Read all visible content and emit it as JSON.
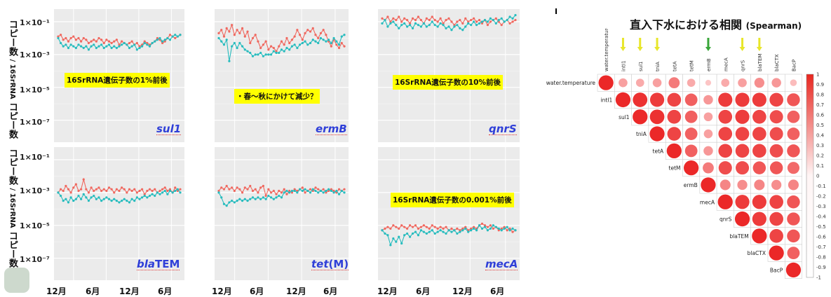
{
  "panels": {
    "y_ticks": [
      "1×10⁻¹",
      "1×10⁻³",
      "1×10⁻⁵",
      "1×10⁻⁷"
    ],
    "x_ticks": [
      "12月",
      "6月",
      "12月",
      "6月"
    ],
    "ylabel": "コピー数 / 16SrRNA コピー数",
    "ylabel_main": "コピー数",
    "ylabel_sub": "/ 16SrRNA",
    "ylabel_tail": "コピー数",
    "colors": {
      "red": "#f0685f",
      "teal": "#27bcbe",
      "grid": "#ffffff",
      "bg": "#ebebeb"
    },
    "annotations": {
      "sul1": "16SrRNA遺伝子数の1%前後",
      "ermB": "・春～秋にかけて減少？",
      "qnrS": "16SrRNA遺伝子数の10%前後",
      "mecA": "16SrRNA遺伝子数の0.001%前後"
    },
    "names": {
      "sul1": "sul1",
      "ermB": "ermB",
      "qnrS": "qnrS",
      "blaTEM_a": "bla",
      "blaTEM_b": "TEM",
      "tetM_a": "tet",
      "tetM_b": "(M)",
      "mecA": "mecA"
    }
  },
  "chart_data": [
    {
      "type": "line",
      "gene": "sul1",
      "ylog": true,
      "ylim": [
        "1e-8",
        "1e-1"
      ],
      "series": [
        {
          "color": "#f0685f",
          "values": [
            -1.9,
            -1.8,
            -2.1,
            -2.0,
            -2.2,
            -2.0,
            -1.9,
            -2.1,
            -2.0,
            -2.2,
            -2.0,
            -2.1,
            -2.3,
            -2.2,
            -2.1,
            -2.2,
            -2.0,
            -2.1,
            -2.3,
            -2.1,
            -2.2,
            -2.3,
            -2.2,
            -2.1,
            -2.4,
            -2.2,
            -2.3,
            -2.4,
            -2.3,
            -2.2,
            -2.4,
            -2.3,
            -2.5,
            -2.4,
            -2.2,
            -2.3,
            -2.4,
            -2.3,
            -2.2,
            -2.0,
            -2.1,
            -2.3,
            -2.2,
            -2.0,
            -1.8,
            -1.9,
            -2.0,
            -1.9,
            -1.8
          ]
        },
        {
          "color": "#27bcbe",
          "values": [
            -2.0,
            -2.3,
            -2.5,
            -2.4,
            -2.6,
            -2.4,
            -2.5,
            -2.6,
            -2.4,
            -2.5,
            -2.6,
            -2.5,
            -2.7,
            -2.5,
            -2.4,
            -2.6,
            -2.5,
            -2.4,
            -2.6,
            -2.5,
            -2.4,
            -2.6,
            -2.5,
            -2.6,
            -2.5,
            -2.4,
            -2.3,
            -2.4,
            -2.6,
            -2.5,
            -2.4,
            -2.7,
            -2.6,
            -2.5,
            -2.3,
            -2.4,
            -2.5,
            -2.3,
            -2.2,
            -2.1,
            -2.0,
            -2.2,
            -2.1,
            -2.0,
            -2.1,
            -1.9,
            -1.8,
            -1.9,
            -1.8
          ]
        }
      ]
    },
    {
      "type": "line",
      "gene": "ermB",
      "ylog": true,
      "ylim": [
        "1e-8",
        "1e-1"
      ],
      "series": [
        {
          "color": "#f0685f",
          "values": [
            -1.7,
            -1.5,
            -1.9,
            -1.4,
            -1.6,
            -1.2,
            -1.8,
            -1.5,
            -1.7,
            -1.4,
            -1.9,
            -1.6,
            -2.3,
            -2.0,
            -1.8,
            -2.2,
            -2.6,
            -2.4,
            -2.2,
            -2.7,
            -2.5,
            -2.6,
            -2.8,
            -2.5,
            -2.2,
            -2.4,
            -2.0,
            -2.3,
            -2.1,
            -1.9,
            -1.5,
            -1.8,
            -2.1,
            -1.7,
            -1.5,
            -1.6,
            -1.4,
            -1.8,
            -2.0,
            -1.7,
            -1.5,
            -1.8,
            -2.2,
            -2.5,
            -2.1,
            -2.4,
            -2.6,
            -2.3,
            -2.5
          ]
        },
        {
          "color": "#27bcbe",
          "values": [
            -2.0,
            -2.2,
            -2.4,
            -2.1,
            -3.4,
            -2.5,
            -2.3,
            -2.6,
            -2.3,
            -2.5,
            -2.7,
            -2.8,
            -2.9,
            -3.1,
            -3.0,
            -3.0,
            -2.9,
            -3.1,
            -3.0,
            -3.0,
            -3.0,
            -2.8,
            -2.9,
            -2.9,
            -2.7,
            -2.8,
            -2.6,
            -2.7,
            -2.5,
            -2.4,
            -2.6,
            -2.4,
            -2.3,
            -2.2,
            -2.4,
            -2.3,
            -2.1,
            -2.2,
            -2.3,
            -2.0,
            -2.1,
            -2.2,
            -2.1,
            -2.3,
            -2.0,
            -2.2,
            -2.4,
            -1.9,
            -1.8
          ]
        }
      ]
    },
    {
      "type": "line",
      "gene": "qnrS",
      "ylog": true,
      "ylim": [
        "1e-8",
        "1e-1"
      ],
      "series": [
        {
          "color": "#f0685f",
          "values": [
            -0.8,
            -0.9,
            -0.7,
            -1.0,
            -0.8,
            -0.9,
            -0.7,
            -1.0,
            -0.8,
            -0.9,
            -1.1,
            -0.8,
            -0.9,
            -0.7,
            -0.9,
            -1.1,
            -0.8,
            -0.9,
            -0.7,
            -0.9,
            -1.0,
            -0.8,
            -1.1,
            -0.9,
            -0.8,
            -1.0,
            -1.2,
            -1.0,
            -0.9,
            -1.1,
            -0.8,
            -1.0,
            -0.9,
            -0.8,
            -1.0,
            -0.9,
            -1.1,
            -0.9,
            -1.2,
            -1.0,
            -0.9,
            -0.8,
            -1.0,
            -1.2,
            -1.0,
            -0.9,
            -1.1,
            -1.0,
            -0.9
          ]
        },
        {
          "color": "#27bcbe",
          "values": [
            -1.1,
            -0.9,
            -1.3,
            -1.1,
            -1.0,
            -1.2,
            -1.4,
            -1.2,
            -1.1,
            -1.3,
            -1.2,
            -1.4,
            -1.1,
            -1.2,
            -1.3,
            -1.1,
            -1.3,
            -1.2,
            -1.0,
            -1.2,
            -1.3,
            -1.1,
            -1.2,
            -1.4,
            -1.3,
            -1.5,
            -1.3,
            -1.2,
            -1.4,
            -1.5,
            -1.3,
            -1.1,
            -1.2,
            -1.0,
            -1.2,
            -1.1,
            -1.0,
            -0.9,
            -1.0,
            -0.8,
            -0.9,
            -1.1,
            -0.9,
            -0.8,
            -1.0,
            -0.9,
            -0.7,
            -0.8,
            -0.6
          ]
        }
      ]
    },
    {
      "type": "line",
      "gene": "blaTEM",
      "ylog": true,
      "ylim": [
        "1e-8",
        "1e-1"
      ],
      "series": [
        {
          "color": "#f0685f",
          "values": [
            -3.0,
            -2.8,
            -2.9,
            -2.6,
            -2.8,
            -3.0,
            -2.7,
            -2.5,
            -2.9,
            -2.8,
            -2.2,
            -2.8,
            -3.0,
            -2.7,
            -2.9,
            -2.8,
            -2.7,
            -2.9,
            -2.8,
            -2.9,
            -2.7,
            -2.8,
            -3.0,
            -2.8,
            -2.9,
            -2.7,
            -2.8,
            -3.0,
            -2.8,
            -2.9,
            -2.8,
            -3.0,
            -2.9,
            -2.8,
            -3.1,
            -2.9,
            -2.8,
            -2.9,
            -2.8,
            -3.0,
            -2.9,
            -2.8,
            -2.7,
            -2.9,
            -2.8,
            -3.0,
            -2.7,
            -2.9,
            -2.8
          ]
        },
        {
          "color": "#27bcbe",
          "values": [
            -3.0,
            -3.2,
            -3.5,
            -3.4,
            -3.6,
            -3.3,
            -3.5,
            -3.4,
            -3.2,
            -3.4,
            -3.1,
            -3.3,
            -3.5,
            -3.3,
            -3.2,
            -3.4,
            -3.3,
            -3.5,
            -3.4,
            -3.3,
            -3.4,
            -3.5,
            -3.4,
            -3.5,
            -3.6,
            -3.5,
            -3.4,
            -3.5,
            -3.6,
            -3.4,
            -3.5,
            -3.3,
            -3.4,
            -3.3,
            -3.2,
            -3.3,
            -3.2,
            -3.1,
            -3.2,
            -3.0,
            -3.1,
            -3.0,
            -2.9,
            -3.1,
            -2.9,
            -3.0,
            -2.9,
            -2.8,
            -3.0
          ]
        }
      ]
    },
    {
      "type": "line",
      "gene": "tet(M)",
      "ylog": true,
      "ylim": [
        "1e-8",
        "1e-1"
      ],
      "series": [
        {
          "color": "#f0685f",
          "values": [
            -2.9,
            -2.7,
            -2.8,
            -2.6,
            -2.8,
            -2.7,
            -2.9,
            -2.7,
            -2.8,
            -3.0,
            -2.7,
            -2.8,
            -2.6,
            -2.9,
            -2.8,
            -3.0,
            -2.7,
            -2.6,
            -3.2,
            -2.8,
            -3.0,
            -2.9,
            -3.1,
            -2.9,
            -3.0,
            -2.8,
            -3.1,
            -2.9,
            -3.0,
            -2.8,
            -2.9,
            -2.8,
            -2.7,
            -3.0,
            -2.9,
            -2.8,
            -2.9,
            -2.7,
            -2.8,
            -2.9,
            -2.8,
            -3.0,
            -2.9,
            -2.8,
            -2.9,
            -3.0,
            -2.8,
            -2.9,
            -2.8
          ]
        },
        {
          "color": "#27bcbe",
          "values": [
            -3.0,
            -3.3,
            -3.7,
            -3.8,
            -3.6,
            -3.5,
            -3.6,
            -3.5,
            -3.4,
            -3.5,
            -3.4,
            -3.5,
            -3.4,
            -3.3,
            -3.4,
            -3.3,
            -3.4,
            -3.3,
            -3.4,
            -3.2,
            -3.3,
            -3.4,
            -3.3,
            -3.2,
            -3.3,
            -3.0,
            -2.9,
            -3.0,
            -2.9,
            -2.9,
            -3.0,
            -2.8,
            -2.9,
            -2.8,
            -2.9,
            -3.0,
            -2.8,
            -2.9,
            -3.0,
            -2.9,
            -3.0,
            -2.9,
            -2.8,
            -2.9,
            -3.0,
            -2.9,
            -3.1,
            -2.9,
            -3.0
          ]
        }
      ]
    },
    {
      "type": "line",
      "gene": "mecA",
      "ylog": true,
      "ylim": [
        "1e-8",
        "1e-1"
      ],
      "series": [
        {
          "color": "#f0685f",
          "values": [
            -5.3,
            -5.2,
            -5.1,
            -5.2,
            -5.0,
            -5.1,
            -5.2,
            -5.0,
            -5.1,
            -5.2,
            -5.0,
            -5.1,
            -5.0,
            -5.2,
            -5.1,
            -5.0,
            -5.1,
            -5.2,
            -5.0,
            -5.1,
            -5.2,
            -5.1,
            -5.2,
            -5.1,
            -5.3,
            -5.2,
            -5.3,
            -5.2,
            -5.3,
            -5.2,
            -5.1,
            -5.3,
            -5.2,
            -5.1,
            -5.2,
            -5.0,
            -4.9,
            -5.0,
            -5.1,
            -5.0,
            -5.2,
            -5.1,
            -5.3,
            -5.2,
            -5.1,
            -5.3,
            -5.2,
            -5.4,
            -5.3
          ]
        },
        {
          "color": "#27bcbe",
          "values": [
            -5.3,
            -5.5,
            -5.6,
            -6.2,
            -5.8,
            -6.0,
            -5.7,
            -6.1,
            -5.6,
            -5.5,
            -5.7,
            -5.5,
            -5.4,
            -5.6,
            -5.3,
            -5.4,
            -5.5,
            -5.4,
            -5.3,
            -5.5,
            -5.4,
            -5.3,
            -5.4,
            -5.5,
            -5.3,
            -5.4,
            -5.3,
            -5.5,
            -5.4,
            -5.3,
            -5.2,
            -5.4,
            -5.3,
            -5.2,
            -5.3,
            -5.0,
            -5.2,
            -5.1,
            -5.3,
            -5.2,
            -5.0,
            -5.1,
            -5.2,
            -5.3,
            -5.2,
            -5.1,
            -5.3,
            -5.2,
            -5.3
          ]
        }
      ]
    },
    {
      "type": "heatmap",
      "title": "直入下水における相関",
      "subtitle": "(Spearman)",
      "labels": [
        "water.temperature",
        "intI1",
        "sul1",
        "tniA",
        "tetA",
        "tetM",
        "ermB",
        "mecA",
        "qnrS",
        "blaTEM",
        "blaCTX",
        "BacP"
      ],
      "arrow_colors": {
        "intI1": "#e8e62a",
        "sul1": "#e8e62a",
        "tniA": "#e8e62a",
        "ermB": "#3aa63a",
        "qnrS": "#e8e62a",
        "blaTEM": "#e8e62a"
      },
      "colorbar_ticks": [
        "1",
        "0.9",
        "0.8",
        "0.7",
        "0.6",
        "0.5",
        "0.4",
        "0.3",
        "0.2",
        "0.1",
        "0",
        "-0.1",
        "-0.2",
        "-0.3",
        "-0.4",
        "-0.5",
        "-0.6",
        "-0.7",
        "-0.8",
        "-0.9",
        "-1"
      ],
      "upper_triangle": [
        [
          1.0,
          0.35,
          0.3,
          0.35,
          0.55,
          0.3,
          0.15,
          0.3,
          0.35,
          0.45,
          0.4,
          0.2
        ],
        [
          1.0,
          0.95,
          0.9,
          0.85,
          0.7,
          0.4,
          0.9,
          0.9,
          0.9,
          0.85,
          0.75
        ],
        [
          1.0,
          0.95,
          0.85,
          0.7,
          0.35,
          0.85,
          0.9,
          0.85,
          0.8,
          0.7
        ],
        [
          1.0,
          0.85,
          0.7,
          0.35,
          0.85,
          0.85,
          0.85,
          0.8,
          0.7
        ],
        [
          1.0,
          0.7,
          0.4,
          0.85,
          0.85,
          0.85,
          0.8,
          0.75
        ],
        [
          1.0,
          0.55,
          0.8,
          0.8,
          0.75,
          0.75,
          0.65
        ],
        [
          1.0,
          0.5,
          0.45,
          0.5,
          0.45,
          0.5
        ],
        [
          1.0,
          0.9,
          0.9,
          0.85,
          0.75
        ],
        [
          1.0,
          0.9,
          0.85,
          0.75
        ],
        [
          1.0,
          0.85,
          0.75
        ],
        [
          1.0,
          0.7
        ],
        [
          1.0
        ]
      ]
    }
  ]
}
